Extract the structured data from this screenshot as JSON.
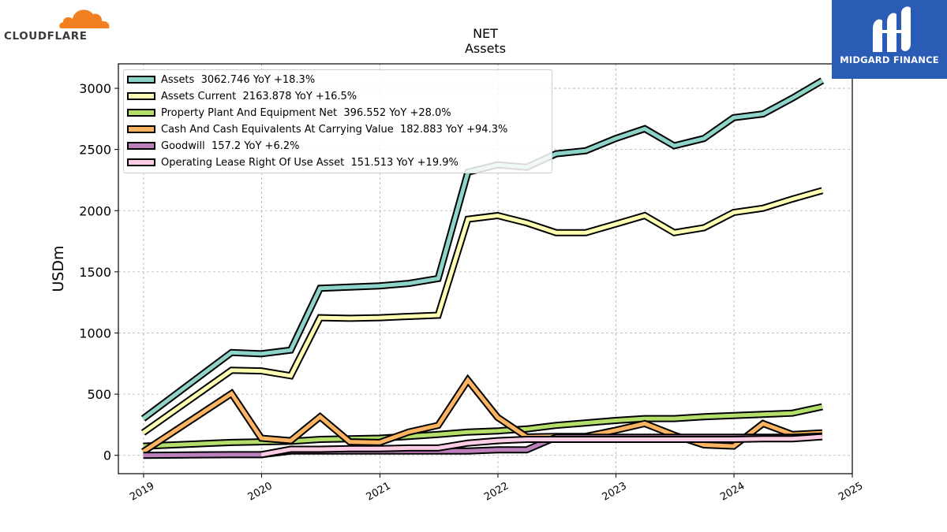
{
  "brands": {
    "left": {
      "name": "CLOUDFLARE",
      "logo_color": "#f38020"
    },
    "right": {
      "name": "MIDGARD FINANCE",
      "bg_color": "#2a5bb5"
    }
  },
  "chart_data": {
    "type": "line",
    "title": "NET",
    "subtitle": "Assets",
    "ylabel": "USDm",
    "xlabel": "",
    "xlim": [
      "2018-10-15",
      "2025-01-01"
    ],
    "ylim": [
      -150,
      3200
    ],
    "x_ticks": [
      "2019",
      "2020",
      "2021",
      "2022",
      "2023",
      "2024",
      "2025"
    ],
    "y_ticks": [
      0,
      500,
      1000,
      1500,
      2000,
      2500,
      3000
    ],
    "grid": true,
    "legend_position": "top-left",
    "series": [
      {
        "name": "Assets",
        "legend": "Assets  3062.746 YoY +18.3%",
        "color": "#8dd3c7",
        "x": [
          "2018-12-31",
          "2019-09-30",
          "2019-12-31",
          "2020-03-31",
          "2020-06-30",
          "2020-09-30",
          "2020-12-31",
          "2021-03-31",
          "2021-06-30",
          "2021-09-30",
          "2021-12-31",
          "2022-03-31",
          "2022-06-30",
          "2022-09-30",
          "2022-12-31",
          "2023-03-31",
          "2023-06-30",
          "2023-09-30",
          "2023-12-31",
          "2024-03-31",
          "2024-06-30",
          "2024-09-30"
        ],
        "y": [
          300,
          840,
          830,
          860,
          1365,
          1375,
          1385,
          1405,
          1445,
          2315,
          2375,
          2355,
          2465,
          2490,
          2590,
          2670,
          2530,
          2590,
          2760,
          2790,
          2920,
          3063
        ]
      },
      {
        "name": "Assets Current",
        "legend": "Assets Current  2163.878 YoY +16.5%",
        "color": "#ffffb3",
        "x": [
          "2018-12-31",
          "2019-09-30",
          "2019-12-31",
          "2020-03-31",
          "2020-06-30",
          "2020-09-30",
          "2020-12-31",
          "2021-03-31",
          "2021-06-30",
          "2021-09-30",
          "2021-12-31",
          "2022-03-31",
          "2022-06-30",
          "2022-09-30",
          "2022-12-31",
          "2023-03-31",
          "2023-06-30",
          "2023-09-30",
          "2023-12-31",
          "2024-03-31",
          "2024-06-30",
          "2024-09-30"
        ],
        "y": [
          185,
          695,
          690,
          650,
          1125,
          1120,
          1125,
          1135,
          1145,
          1930,
          1960,
          1900,
          1820,
          1820,
          1890,
          1960,
          1820,
          1860,
          1985,
          2020,
          2095,
          2164
        ]
      },
      {
        "name": "Property Plant And Equipment Net",
        "legend": "Property Plant And Equipment Net  396.552 YoY +28.0%",
        "color": "#b3de69",
        "x": [
          "2018-12-31",
          "2019-09-30",
          "2019-12-31",
          "2020-03-31",
          "2020-06-30",
          "2020-09-30",
          "2020-12-31",
          "2021-03-31",
          "2021-06-30",
          "2021-09-30",
          "2021-12-31",
          "2022-03-31",
          "2022-06-30",
          "2022-09-30",
          "2022-12-31",
          "2023-03-31",
          "2023-06-30",
          "2023-09-30",
          "2023-12-31",
          "2024-03-31",
          "2024-06-30",
          "2024-09-30"
        ],
        "y": [
          75,
          105,
          110,
          115,
          130,
          135,
          140,
          155,
          170,
          190,
          200,
          215,
          245,
          265,
          285,
          300,
          300,
          315,
          325,
          335,
          345,
          397
        ]
      },
      {
        "name": "Cash And Cash Equivalents At Carrying Value",
        "legend": "Cash And Cash Equivalents At Carrying Value  182.883 YoY +94.3%",
        "color": "#fdb462",
        "x": [
          "2018-12-31",
          "2019-09-30",
          "2019-12-31",
          "2020-03-31",
          "2020-06-30",
          "2020-09-30",
          "2020-12-31",
          "2021-03-31",
          "2021-06-30",
          "2021-09-30",
          "2021-12-31",
          "2022-03-31",
          "2022-06-30",
          "2022-09-30",
          "2022-12-31",
          "2023-03-31",
          "2023-06-30",
          "2023-09-30",
          "2023-12-31",
          "2024-03-31",
          "2024-06-30",
          "2024-09-30"
        ],
        "y": [
          30,
          505,
          140,
          120,
          315,
          110,
          105,
          190,
          245,
          615,
          310,
          150,
          155,
          155,
          205,
          260,
          165,
          85,
          75,
          260,
          170,
          183
        ]
      },
      {
        "name": "Goodwill",
        "legend": "Goodwill  157.2 YoY +6.2%",
        "color": "#bc80bd",
        "x": [
          "2018-12-31",
          "2019-09-30",
          "2019-12-31",
          "2020-03-31",
          "2020-06-30",
          "2020-09-30",
          "2020-12-31",
          "2021-03-31",
          "2021-06-30",
          "2021-09-30",
          "2021-12-31",
          "2022-03-31",
          "2022-06-30",
          "2022-09-30",
          "2022-12-31",
          "2023-03-31",
          "2023-06-30",
          "2023-09-30",
          "2023-12-31",
          "2024-03-31",
          "2024-06-30",
          "2024-09-30"
        ],
        "y": [
          0,
          5,
          5,
          35,
          35,
          35,
          35,
          35,
          35,
          35,
          45,
          45,
          148,
          148,
          148,
          148,
          148,
          148,
          148,
          148,
          148,
          157
        ]
      },
      {
        "name": "Operating Lease Right Of Use Asset",
        "legend": "Operating Lease Right Of Use Asset  151.513 YoY +19.9%",
        "color": "#fccde5",
        "x": [
          "2019-12-31",
          "2020-03-31",
          "2020-06-30",
          "2020-09-30",
          "2020-12-31",
          "2021-03-31",
          "2021-06-30",
          "2021-09-30",
          "2021-12-31",
          "2022-03-31",
          "2022-06-30",
          "2022-09-30",
          "2022-12-31",
          "2023-03-31",
          "2023-06-30",
          "2023-09-30",
          "2023-12-31",
          "2024-03-31",
          "2024-06-30",
          "2024-09-30"
        ],
        "y": [
          5,
          50,
          50,
          55,
          55,
          60,
          60,
          100,
          120,
          130,
          130,
          130,
          130,
          130,
          130,
          130,
          130,
          135,
          135,
          152
        ]
      }
    ]
  }
}
